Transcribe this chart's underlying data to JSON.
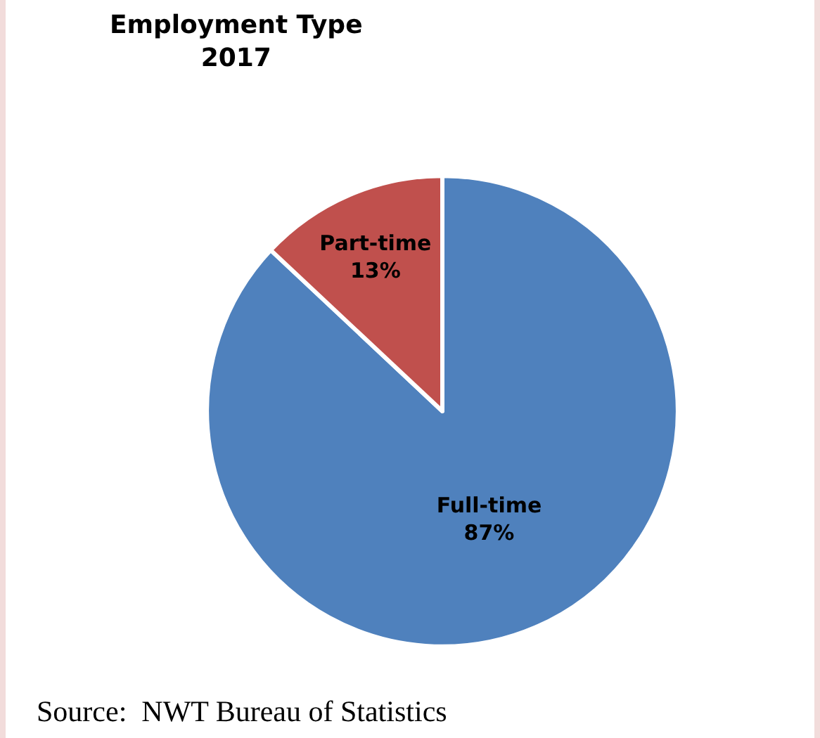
{
  "chart_data": {
    "type": "pie",
    "title": "Employment Type\n2017",
    "categories": [
      "Full-time",
      "Part-time"
    ],
    "values": [
      87,
      13
    ],
    "value_labels": [
      "87%",
      "13%"
    ],
    "colors": [
      "#4f81bd",
      "#c0504d"
    ],
    "legend": false,
    "annotations": [
      "Source:  NWT Bureau of Statistics"
    ]
  }
}
